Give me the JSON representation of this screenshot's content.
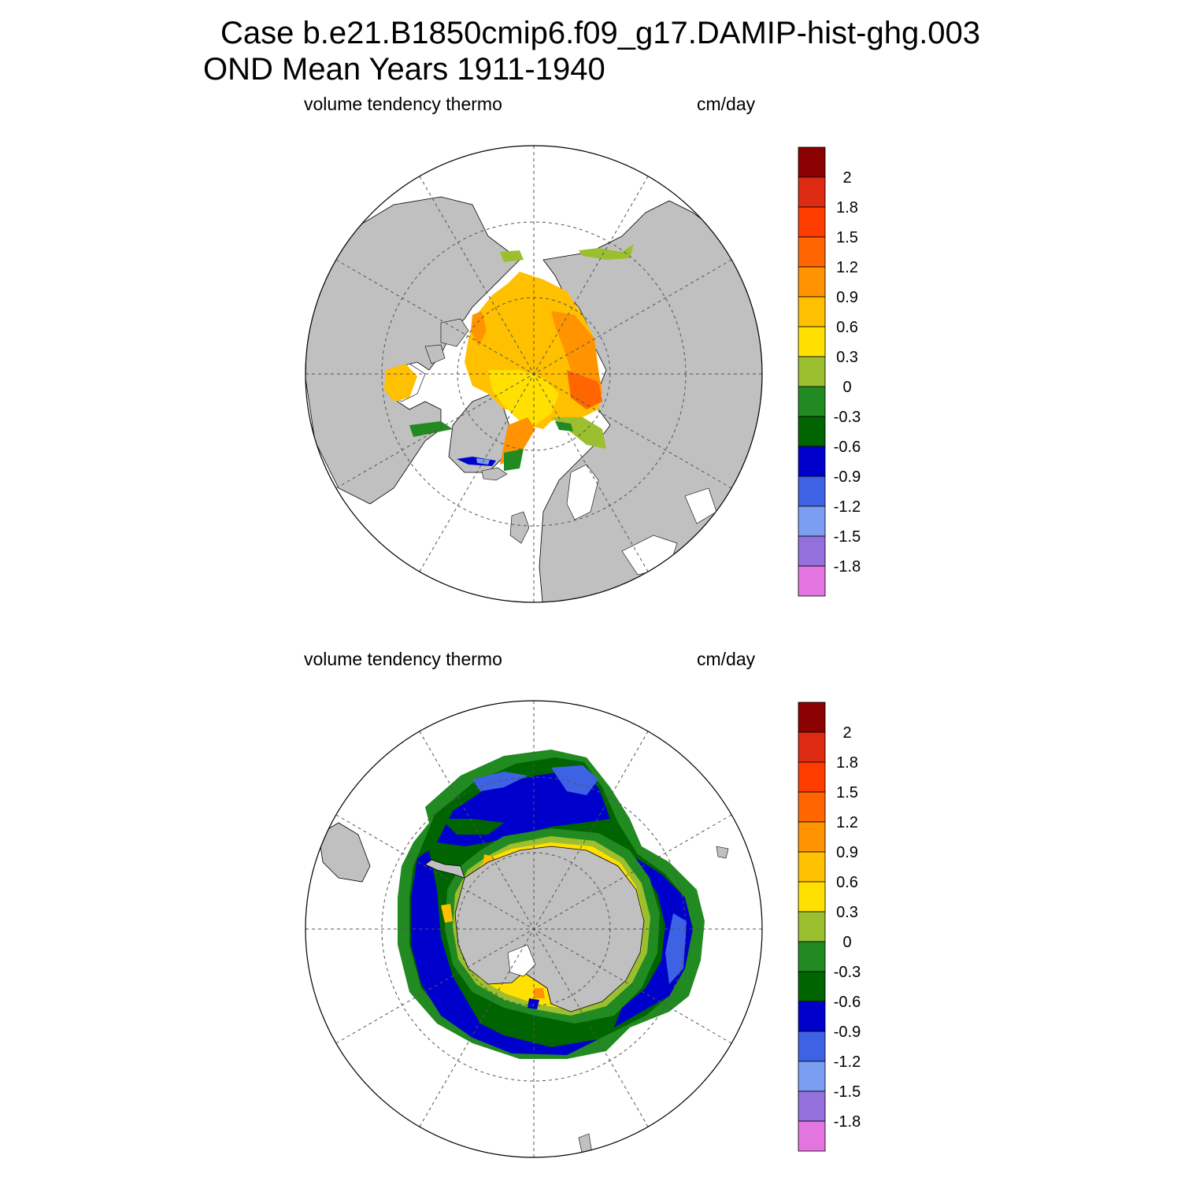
{
  "figure": {
    "title_line1": "Case b.e21.B1850cmip6.f09_g17.DAMIP-hist-ghg.003",
    "title_line2": "OND Mean   Years 1911-1940"
  },
  "panels": [
    {
      "variable": "volume tendency thermo",
      "units": "cm/day",
      "hemisphere": "north"
    },
    {
      "variable": "volume tendency thermo",
      "units": "cm/day",
      "hemisphere": "south"
    }
  ],
  "colorbar": {
    "tick_labels": [
      "2",
      "1.8",
      "1.5",
      "1.2",
      "0.9",
      "0.6",
      "0.3",
      "0",
      "-0.3",
      "-0.6",
      "-0.9",
      "-1.2",
      "-1.5",
      "-1.8"
    ],
    "colors_top_to_bottom": [
      "#8b0000",
      "#dd2a12",
      "#ff3c00",
      "#ff6600",
      "#ff9400",
      "#ffc000",
      "#ffe000",
      "#9bbf2e",
      "#218a21",
      "#006400",
      "#0000cd",
      "#3e62e4",
      "#7b9ef2",
      "#9370db",
      "#e375e0"
    ]
  },
  "colors": {
    "land": "#c0c0c0",
    "ocean": "#ffffff",
    "grid": "#555555"
  }
}
